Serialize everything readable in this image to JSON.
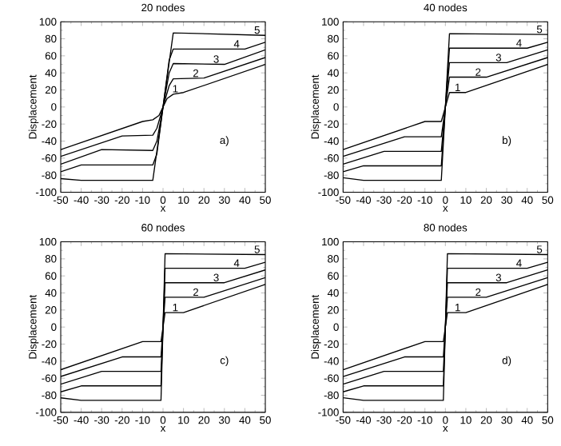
{
  "chart_data": [
    {
      "type": "line",
      "title": "20 nodes",
      "xlabel": "x",
      "ylabel": "Displacement",
      "xlim": [
        -50,
        50
      ],
      "ylim": [
        -100,
        100
      ],
      "xticks": [
        -50,
        -40,
        -30,
        -20,
        -10,
        0,
        10,
        20,
        30,
        40,
        50
      ],
      "yticks": [
        -100,
        -80,
        -60,
        -40,
        -20,
        0,
        20,
        40,
        60,
        80,
        100
      ],
      "annotations": [
        "a)"
      ],
      "series": [
        {
          "name": "1",
          "color": "#000000",
          "x": [
            -50,
            -10,
            -5,
            -2,
            0,
            2,
            5,
            10,
            50
          ],
          "values": [
            -50,
            -17,
            -15,
            -10,
            0,
            10,
            15,
            17,
            50
          ]
        },
        {
          "name": "2",
          "color": "#000000",
          "x": [
            -50,
            -20,
            -5,
            -3,
            0,
            3,
            5,
            20,
            50
          ],
          "values": [
            -58,
            -34,
            -33,
            -25,
            0,
            25,
            33,
            34,
            58
          ]
        },
        {
          "name": "3",
          "color": "#000000",
          "x": [
            -50,
            -30,
            -5,
            -3,
            0,
            3,
            5,
            30,
            50
          ],
          "values": [
            -67,
            -50,
            -51,
            -40,
            0,
            40,
            51,
            50,
            67
          ]
        },
        {
          "name": "4",
          "color": "#000000",
          "x": [
            -50,
            -40,
            -5,
            -3,
            0,
            3,
            5,
            40,
            50
          ],
          "values": [
            -76,
            -68,
            -68,
            -55,
            0,
            55,
            68,
            68,
            76
          ]
        },
        {
          "name": "5",
          "color": "#000000",
          "x": [
            -50,
            -40,
            -5,
            0,
            5,
            50
          ],
          "values": [
            -84,
            -86,
            -86,
            0,
            87,
            84
          ]
        }
      ]
    },
    {
      "type": "line",
      "title": "40 nodes",
      "xlabel": "x",
      "ylabel": "Displacement",
      "xlim": [
        -50,
        50
      ],
      "ylim": [
        -100,
        100
      ],
      "xticks": [
        -50,
        -40,
        -30,
        -20,
        -10,
        0,
        10,
        20,
        30,
        40,
        50
      ],
      "yticks": [
        -100,
        -80,
        -60,
        -40,
        -20,
        0,
        20,
        40,
        60,
        80,
        100
      ],
      "annotations": [
        "b)"
      ],
      "series": [
        {
          "name": "1",
          "color": "#000000",
          "x": [
            -50,
            -10,
            -2,
            0,
            2,
            10,
            50
          ],
          "values": [
            -50,
            -17,
            -17,
            0,
            17,
            17,
            50
          ]
        },
        {
          "name": "2",
          "color": "#000000",
          "x": [
            -50,
            -20,
            -2,
            0,
            2,
            20,
            50
          ],
          "values": [
            -58,
            -35,
            -35,
            0,
            35,
            35,
            58
          ]
        },
        {
          "name": "3",
          "color": "#000000",
          "x": [
            -50,
            -30,
            -2,
            0,
            2,
            30,
            50
          ],
          "values": [
            -67,
            -52,
            -52,
            0,
            52,
            52,
            67
          ]
        },
        {
          "name": "4",
          "color": "#000000",
          "x": [
            -50,
            -40,
            -2,
            0,
            2,
            40,
            50
          ],
          "values": [
            -76,
            -69,
            -69,
            0,
            69,
            69,
            76
          ]
        },
        {
          "name": "5",
          "color": "#000000",
          "x": [
            -50,
            -40,
            -2,
            0,
            2,
            50
          ],
          "values": [
            -83,
            -86,
            -86,
            0,
            86,
            85
          ]
        }
      ]
    },
    {
      "type": "line",
      "title": "60 nodes",
      "xlabel": "x",
      "ylabel": "Displacement",
      "xlim": [
        -50,
        50
      ],
      "ylim": [
        -100,
        100
      ],
      "xticks": [
        -50,
        -40,
        -30,
        -20,
        -10,
        0,
        10,
        20,
        30,
        40,
        50
      ],
      "yticks": [
        -100,
        -80,
        -60,
        -40,
        -20,
        0,
        20,
        40,
        60,
        80,
        100
      ],
      "annotations": [
        "c)"
      ],
      "series": [
        {
          "name": "1",
          "color": "#000000",
          "x": [
            -50,
            -10,
            -1,
            0,
            1,
            10,
            50
          ],
          "values": [
            -50,
            -17,
            -17,
            0,
            17,
            17,
            50
          ]
        },
        {
          "name": "2",
          "color": "#000000",
          "x": [
            -50,
            -20,
            -1,
            0,
            1,
            20,
            50
          ],
          "values": [
            -58,
            -35,
            -35,
            0,
            35,
            35,
            58
          ]
        },
        {
          "name": "3",
          "color": "#000000",
          "x": [
            -50,
            -30,
            -1,
            0,
            1,
            30,
            50
          ],
          "values": [
            -67,
            -52,
            -52,
            0,
            52,
            52,
            67
          ]
        },
        {
          "name": "4",
          "color": "#000000",
          "x": [
            -50,
            -40,
            -1,
            0,
            1,
            40,
            50
          ],
          "values": [
            -76,
            -69,
            -69,
            0,
            69,
            69,
            76
          ]
        },
        {
          "name": "5",
          "color": "#000000",
          "x": [
            -50,
            -40,
            -1,
            0,
            1,
            50
          ],
          "values": [
            -83,
            -86,
            -86,
            0,
            86,
            85
          ]
        }
      ]
    },
    {
      "type": "line",
      "title": "80 nodes",
      "xlabel": "x",
      "ylabel": "Displacement",
      "xlim": [
        -50,
        50
      ],
      "ylim": [
        -100,
        100
      ],
      "xticks": [
        -50,
        -40,
        -30,
        -20,
        -10,
        0,
        10,
        20,
        30,
        40,
        50
      ],
      "yticks": [
        -100,
        -80,
        -60,
        -40,
        -20,
        0,
        20,
        40,
        60,
        80,
        100
      ],
      "annotations": [
        "d)"
      ],
      "series": [
        {
          "name": "1",
          "color": "#000000",
          "x": [
            -50,
            -10,
            -1,
            0,
            1,
            10,
            50
          ],
          "values": [
            -50,
            -17,
            -17,
            0,
            17,
            17,
            50
          ]
        },
        {
          "name": "2",
          "color": "#000000",
          "x": [
            -50,
            -20,
            -1,
            0,
            1,
            20,
            50
          ],
          "values": [
            -58,
            -35,
            -35,
            0,
            35,
            35,
            58
          ]
        },
        {
          "name": "3",
          "color": "#000000",
          "x": [
            -50,
            -30,
            -1,
            0,
            1,
            30,
            50
          ],
          "values": [
            -67,
            -52,
            -52,
            0,
            52,
            52,
            67
          ]
        },
        {
          "name": "4",
          "color": "#000000",
          "x": [
            -50,
            -40,
            -1,
            0,
            1,
            40,
            50
          ],
          "values": [
            -76,
            -69,
            -69,
            0,
            69,
            69,
            76
          ]
        },
        {
          "name": "5",
          "color": "#000000",
          "x": [
            -50,
            -40,
            -1,
            0,
            1,
            50
          ],
          "values": [
            -83,
            -86,
            -86,
            0,
            86,
            85
          ]
        }
      ]
    }
  ]
}
